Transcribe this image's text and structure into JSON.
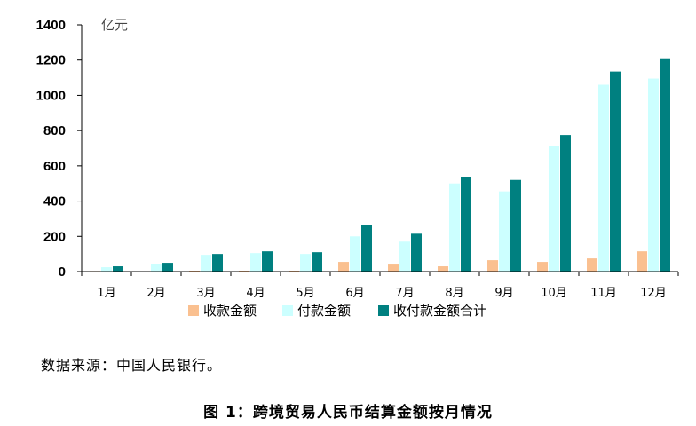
{
  "chart_data": {
    "type": "bar",
    "unit_label": "亿元",
    "categories": [
      "1月",
      "2月",
      "3月",
      "4月",
      "5月",
      "6月",
      "7月",
      "8月",
      "9月",
      "10月",
      "11月",
      "12月"
    ],
    "series": [
      {
        "name": "收款金额",
        "color": "#FAC090",
        "values": [
          3,
          2,
          5,
          5,
          5,
          55,
          40,
          30,
          65,
          55,
          75,
          115
        ]
      },
      {
        "name": "付款金额",
        "color": "#CCFFFF",
        "values": [
          25,
          45,
          95,
          105,
          100,
          200,
          170,
          500,
          455,
          710,
          1060,
          1095
        ]
      },
      {
        "name": "收付款金额合计",
        "color": "#008080",
        "values": [
          30,
          50,
          100,
          115,
          110,
          265,
          215,
          535,
          520,
          775,
          1135,
          1210
        ]
      }
    ],
    "yticks": [
      "0",
      "200",
      "400",
      "600",
      "800",
      "1000",
      "1200",
      "1400"
    ],
    "ylim": [
      0,
      1400
    ],
    "legend_position": "bottom"
  },
  "source_note": "数据来源：中国人民银行。",
  "caption": "图 1：跨境贸易人民币结算金额按月情况"
}
